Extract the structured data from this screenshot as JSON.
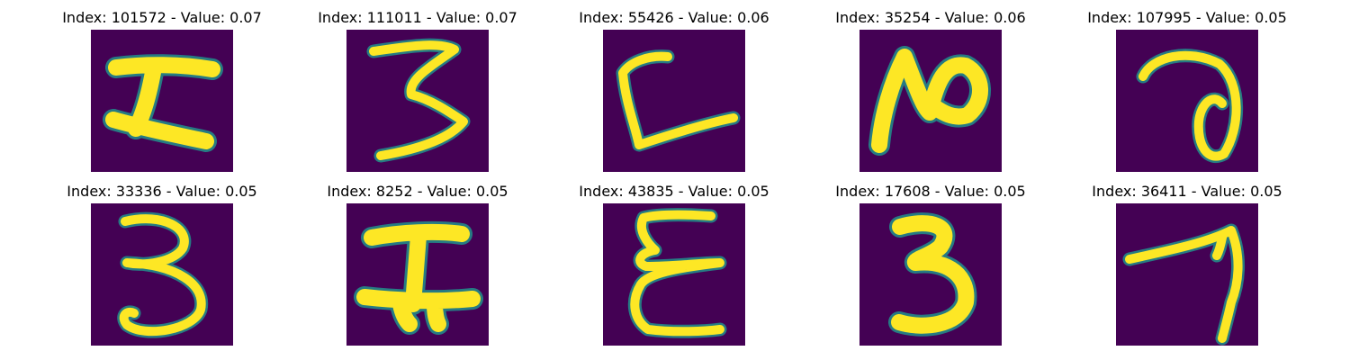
{
  "figure": {
    "panels": [
      {
        "title": "Index: 101572 - Value: 0.07",
        "glyph": "rotated-digit-5"
      },
      {
        "title": "Index: 111011 - Value: 0.07",
        "glyph": "rotated-digit-3"
      },
      {
        "title": "Index: 55426 - Value: 0.06",
        "glyph": "rotated-digit-4"
      },
      {
        "title": "Index: 35254 - Value: 0.06",
        "glyph": "rotated-digit-2"
      },
      {
        "title": "Index: 107995 - Value: 0.05",
        "glyph": "rotated-digit-6"
      },
      {
        "title": "Index: 33336 - Value: 0.05",
        "glyph": "digit-3"
      },
      {
        "title": "Index: 8252 - Value: 0.05",
        "glyph": "rotated-digit-5"
      },
      {
        "title": "Index: 43835 - Value: 0.05",
        "glyph": "rotated-digit-3"
      },
      {
        "title": "Index: 17608 - Value: 0.05",
        "glyph": "digit-3"
      },
      {
        "title": "Index: 36411 - Value: 0.05",
        "glyph": "digit-7"
      }
    ],
    "colors": {
      "background": "#ffffff",
      "image_low": "#440154",
      "image_mid": "#21918c",
      "image_high": "#fde725"
    }
  }
}
